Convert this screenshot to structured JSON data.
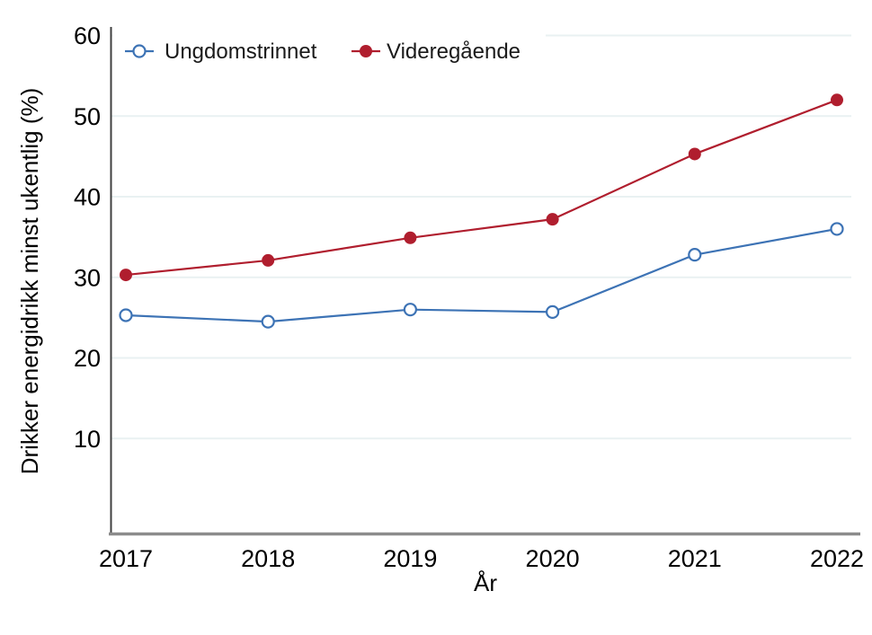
{
  "chart_data": {
    "type": "line",
    "title": "",
    "xlabel": "År",
    "ylabel": "Drikker energidrikk minst ukentlig (%)",
    "x": [
      2017,
      2018,
      2019,
      2020,
      2021,
      2022
    ],
    "x_tick_labels": [
      "2017",
      "2018",
      "2019",
      "2020",
      "2021",
      "2022"
    ],
    "y_ticks": [
      10,
      20,
      30,
      40,
      50,
      60
    ],
    "y_tick_labels": [
      "10",
      "20",
      "30",
      "40",
      "50",
      "60"
    ],
    "ylim": [
      -1.7,
      61.1
    ],
    "grid": "horizontal-only",
    "legend_position": "top-left-inside",
    "series": [
      {
        "name": "Ungdomstrinnet",
        "color": "#3d73b5",
        "marker": "open-circle",
        "values": [
          25.3,
          24.5,
          26.0,
          25.7,
          32.8,
          36.0
        ]
      },
      {
        "name": "Videregående",
        "color": "#b01e2e",
        "marker": "filled-circle",
        "values": [
          30.3,
          32.1,
          34.9,
          37.2,
          45.3,
          52.0
        ]
      }
    ]
  },
  "colors": {
    "background": "#ffffff",
    "gridline": "#e9f1f2",
    "axis_left": "#3f3f3f",
    "axis_bottom": "#8c8c8c",
    "text": "#000000"
  }
}
